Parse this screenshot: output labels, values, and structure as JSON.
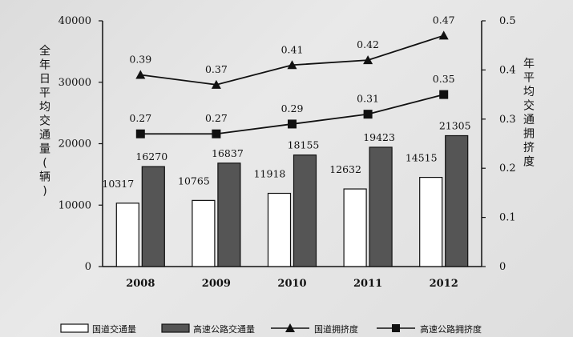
{
  "chart_data": {
    "type": "bar",
    "categories": [
      "2008",
      "2009",
      "2010",
      "2011",
      "2012"
    ],
    "series": [
      {
        "name": "国道交通量",
        "type": "bar",
        "axis": "left",
        "color": "#ffffff",
        "values": [
          10317,
          10765,
          11918,
          12632,
          14515
        ]
      },
      {
        "name": "高速公路交通量",
        "type": "bar",
        "axis": "left",
        "color": "#555555",
        "values": [
          16270,
          16837,
          18155,
          19423,
          21305
        ]
      },
      {
        "name": "国道拥挤度",
        "type": "line",
        "marker": "triangle",
        "axis": "right",
        "color": "#111111",
        "values": [
          0.39,
          0.37,
          0.41,
          0.42,
          0.47
        ]
      },
      {
        "name": "高速公路拥挤度",
        "type": "line",
        "marker": "square",
        "axis": "right",
        "color": "#111111",
        "values": [
          0.27,
          0.27,
          0.29,
          0.31,
          0.35
        ]
      }
    ],
    "ylabel_left": "全年日平均交通量(辆)",
    "ylabel_right": "年平均交通拥挤度",
    "ylim_left": [
      0,
      40000
    ],
    "ylim_right": [
      0,
      0.5
    ],
    "yticks_left": [
      "0",
      "10000",
      "20000",
      "30000",
      "40000"
    ],
    "yticks_right": [
      "0",
      "0.1",
      "0.2",
      "0.3",
      "0.4",
      "0.5"
    ],
    "grid": false,
    "legend_position": "bottom"
  }
}
